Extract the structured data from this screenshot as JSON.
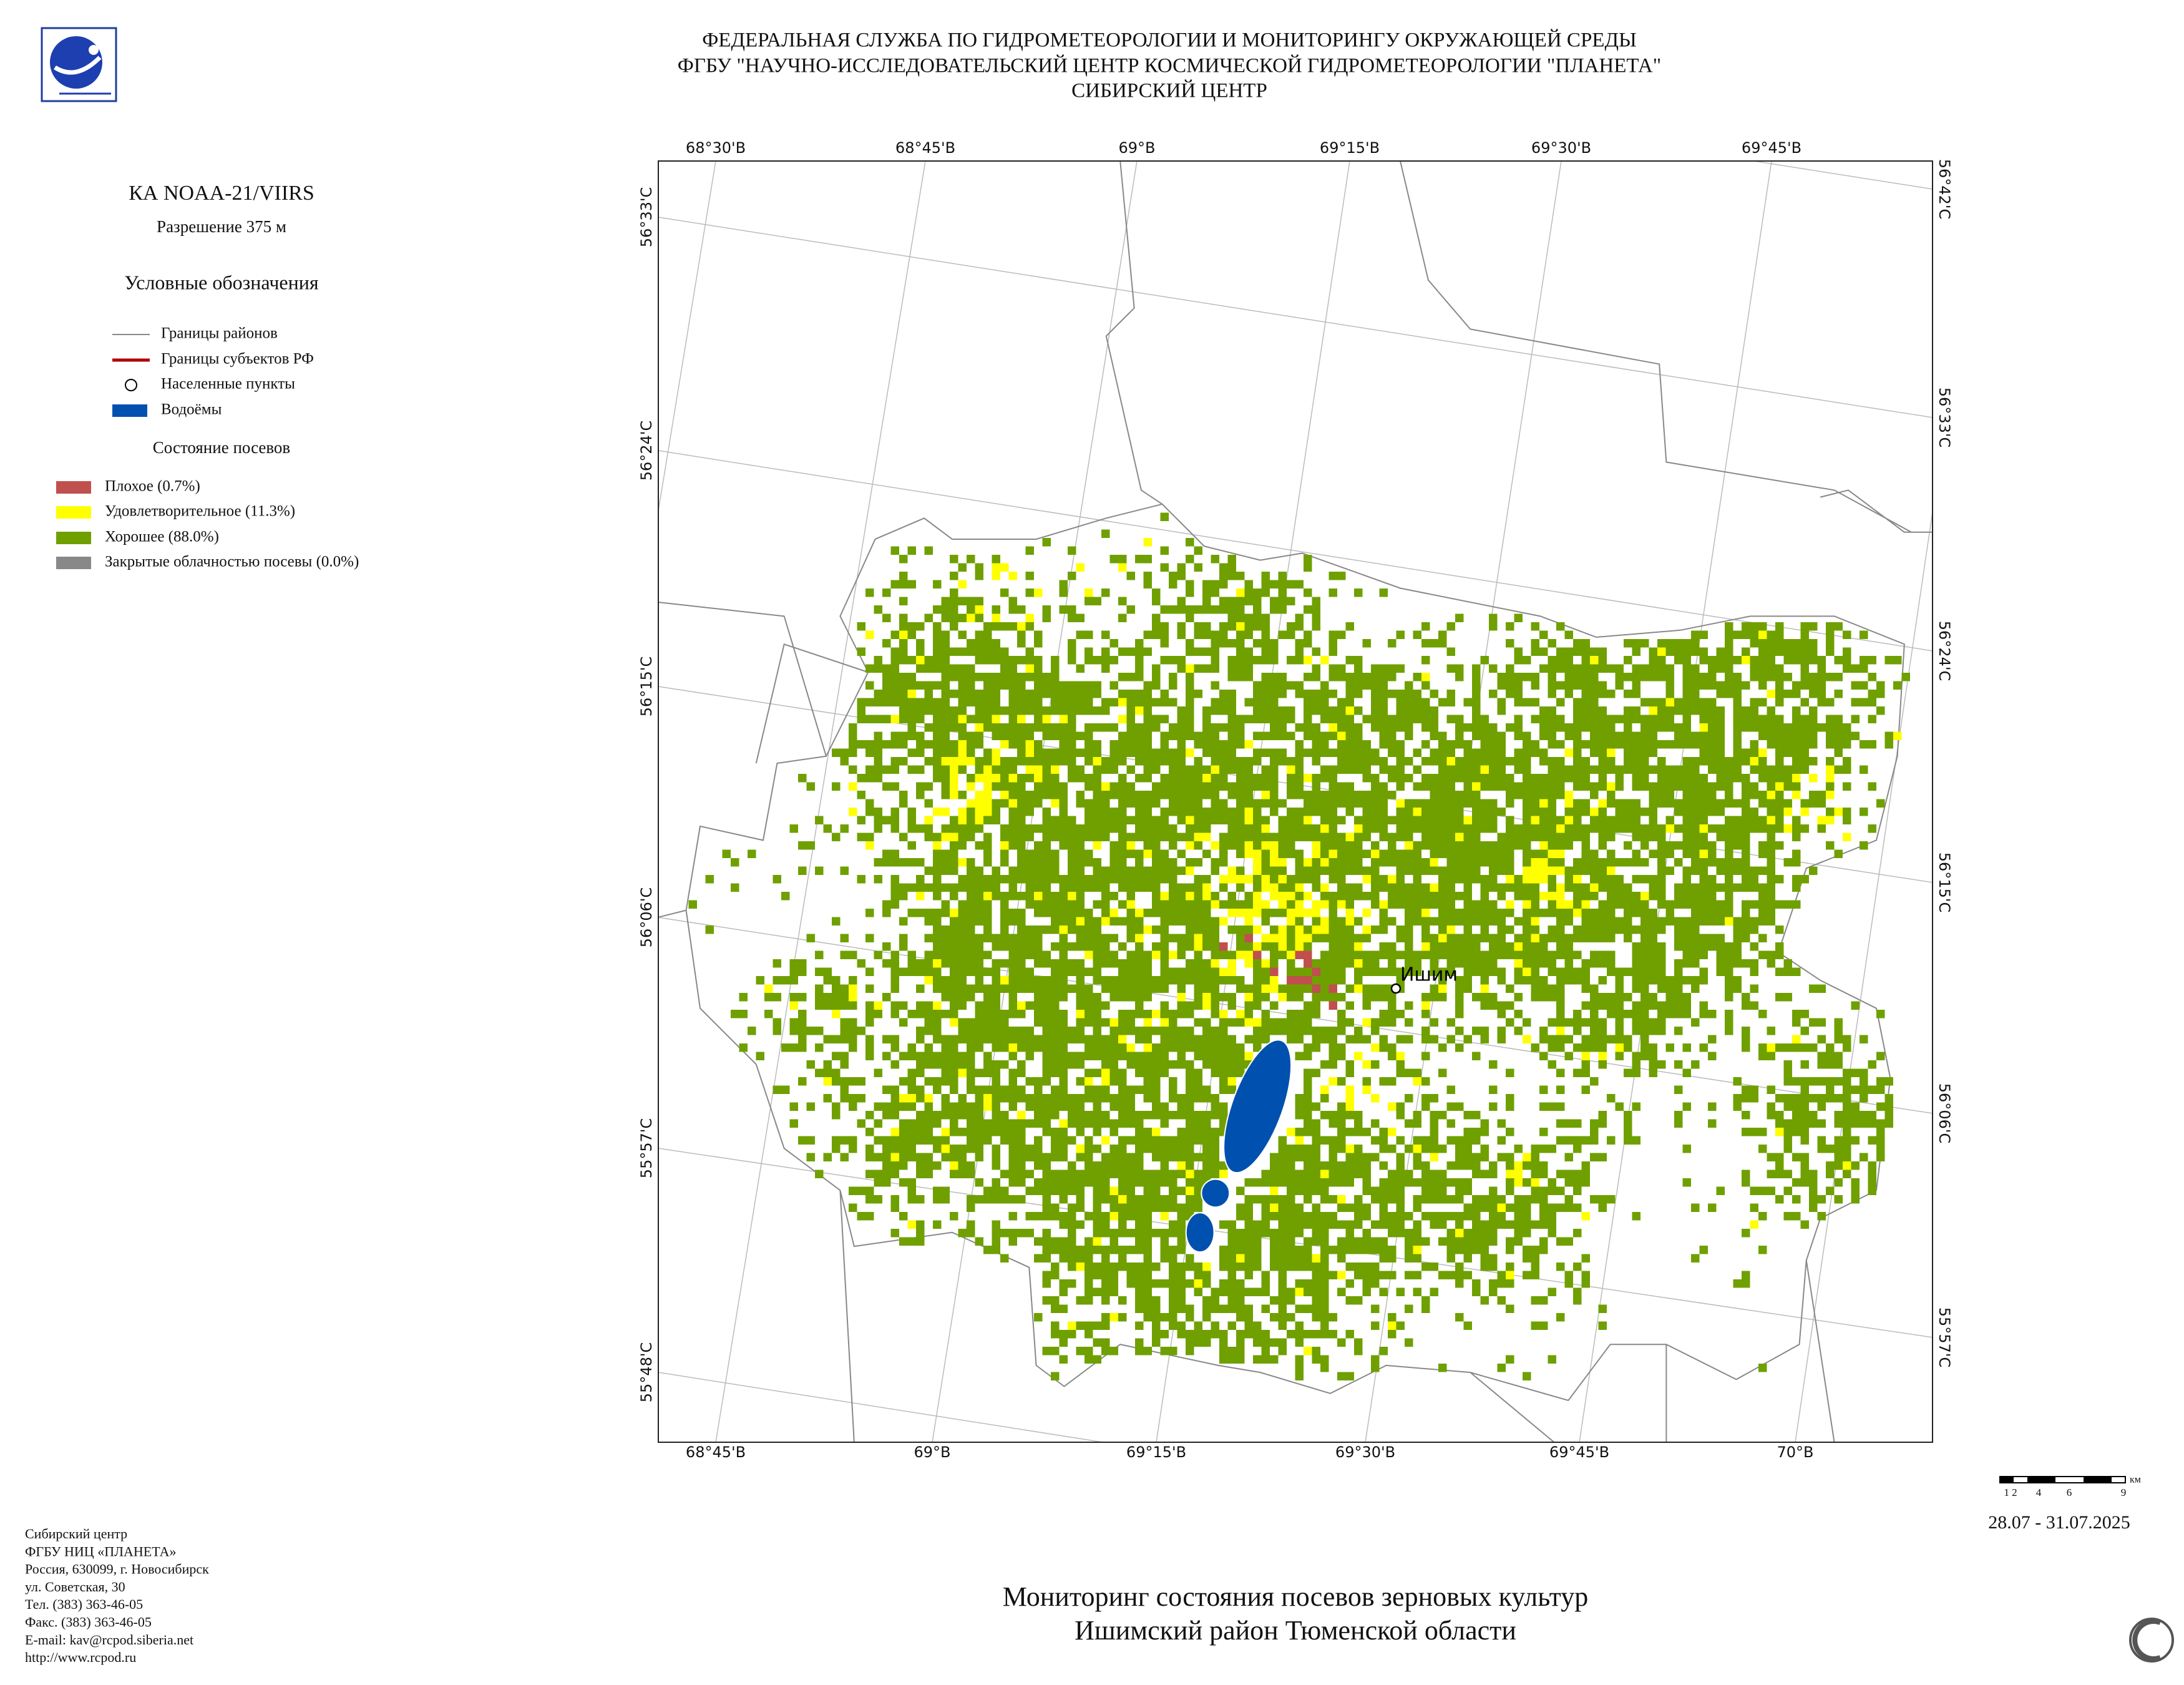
{
  "header": {
    "lines": [
      "ФЕДЕРАЛЬНАЯ СЛУЖБА ПО ГИДРОМЕТЕОРОЛОГИИ И МОНИТОРИНГУ ОКРУЖАЮЩЕЙ СРЕДЫ",
      "ФГБУ \"НАУЧНО-ИССЛЕДОВАТЕЛЬСКИЙ ЦЕНТР КОСМИЧЕСКОЙ ГИДРОМЕТЕОРОЛОГИИ \"ПЛАНЕТА\"",
      "СИБИРСКИЙ ЦЕНТР"
    ]
  },
  "satellite": "КА NOAA-21/VIIRS",
  "resolution": "Разрешение 375 м",
  "legend": {
    "title": "Условные обозначения",
    "items": [
      "Границы районов",
      "Границы субъектов РФ",
      "Населенные пункты",
      "Водоёмы"
    ],
    "crops_title": "Состояние посевов",
    "crops": [
      "Плохое (0.7%)",
      "Удовлетворительное (11.3%)",
      "Хорошее (88.0%)",
      "Закрытые облачностью посевы (0.0%)"
    ]
  },
  "map": {
    "top_labels": [
      "68°30'В",
      "68°45'В",
      "69°В",
      "69°15'В",
      "69°30'В",
      "69°45'В"
    ],
    "bottom_labels": [
      "68°45'В",
      "69°В",
      "69°15'В",
      "69°30'В",
      "69°45'В",
      "70°В"
    ],
    "left_labels": [
      "56°33'С",
      "56°24'С",
      "56°15'С",
      "56°06'С",
      "55°57'С",
      "55°48'С"
    ],
    "right_labels": [
      "56°42'С",
      "56°33'С",
      "56°24'С",
      "56°15'С",
      "56°06'С",
      "55°57'С"
    ],
    "city": "Ишим"
  },
  "scale": {
    "ticks": [
      "1 2",
      "4",
      "6",
      "9"
    ],
    "unit": "км"
  },
  "date": "28.07 - 31.07.2025",
  "title": [
    "Мониторинг состояния посевов зерновых культур",
    "Ишимский район Тюменской области"
  ],
  "footer": [
    "Сибирский центр",
    "ФГБУ НИЦ «ПЛАНЕТА»",
    "Россия, 630099, г. Новосибирск",
    "ул. Советская, 30",
    "Тел. (383) 363-46-05",
    "Факс. (383) 363-46-05",
    "E-mail: kav@rcpod.siberia.net",
    "http://www.rcpod.ru"
  ]
}
